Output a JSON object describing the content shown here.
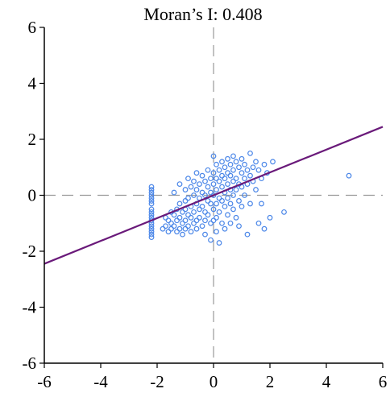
{
  "chart_data": {
    "type": "scatter",
    "title": "Moran’s I: 0.408",
    "xlabel": "",
    "ylabel": "",
    "xlim": [
      -6,
      6
    ],
    "ylim": [
      -6,
      6
    ],
    "xticks": [
      "-6",
      "-4",
      "-2",
      "0",
      "2",
      "4",
      "6"
    ],
    "yticks": [
      "6",
      "4",
      "2",
      "0",
      "-2",
      "-4",
      "-6"
    ],
    "grid": false,
    "reference_lines": {
      "x": 0,
      "y": 0,
      "style": "dashed"
    },
    "colors": {
      "points": "#4a86e8",
      "fit_line": "#6a1a7a",
      "reference": "#9a9a9a",
      "axes": "#000000"
    },
    "fit_line": {
      "slope": 0.408,
      "intercept": 0
    },
    "series": [
      {
        "points": [
          [
            -2.2,
            0.3
          ],
          [
            -2.2,
            0.2
          ],
          [
            -2.2,
            0.1
          ],
          [
            -2.2,
            0.0
          ],
          [
            -2.2,
            -0.1
          ],
          [
            -2.2,
            -0.3
          ],
          [
            -2.2,
            -0.5
          ],
          [
            -2.2,
            -0.6
          ],
          [
            -2.2,
            -0.7
          ],
          [
            -2.2,
            -0.8
          ],
          [
            -2.2,
            -0.9
          ],
          [
            -2.2,
            -1.0
          ],
          [
            -2.2,
            -1.1
          ],
          [
            -2.2,
            -1.2
          ],
          [
            -2.2,
            -1.3
          ],
          [
            -2.2,
            -1.5
          ],
          [
            -2.2,
            -0.2
          ],
          [
            -2.2,
            -1.4
          ],
          [
            -1.8,
            -1.2
          ],
          [
            -1.7,
            -0.8
          ],
          [
            -1.7,
            -1.1
          ],
          [
            -1.6,
            -0.9
          ],
          [
            -1.6,
            -1.3
          ],
          [
            -1.5,
            -0.6
          ],
          [
            -1.5,
            -1.0
          ],
          [
            -1.5,
            -1.2
          ],
          [
            -1.4,
            0.1
          ],
          [
            -1.4,
            -0.7
          ],
          [
            -1.4,
            -1.1
          ],
          [
            -1.3,
            -0.5
          ],
          [
            -1.3,
            -1.3
          ],
          [
            -1.3,
            -0.9
          ],
          [
            -1.2,
            -0.3
          ],
          [
            -1.2,
            -0.8
          ],
          [
            -1.2,
            -1.2
          ],
          [
            -1.2,
            0.4
          ],
          [
            -1.1,
            -0.6
          ],
          [
            -1.1,
            -1.0
          ],
          [
            -1.1,
            -1.4
          ],
          [
            -1.0,
            0.2
          ],
          [
            -1.0,
            -0.2
          ],
          [
            -1.0,
            -0.5
          ],
          [
            -1.0,
            -0.9
          ],
          [
            -1.0,
            -1.2
          ],
          [
            -0.9,
            0.6
          ],
          [
            -0.9,
            -0.1
          ],
          [
            -0.9,
            -0.7
          ],
          [
            -0.9,
            -1.1
          ],
          [
            -0.8,
            0.3
          ],
          [
            -0.8,
            -0.4
          ],
          [
            -0.8,
            -0.8
          ],
          [
            -0.8,
            -1.3
          ],
          [
            -0.7,
            0.0
          ],
          [
            -0.7,
            0.5
          ],
          [
            -0.7,
            -0.6
          ],
          [
            -0.7,
            -1.0
          ],
          [
            -0.6,
            0.8
          ],
          [
            -0.6,
            0.2
          ],
          [
            -0.6,
            -0.3
          ],
          [
            -0.6,
            -0.9
          ],
          [
            -0.6,
            -1.2
          ],
          [
            -0.5,
            0.4
          ],
          [
            -0.5,
            -0.1
          ],
          [
            -0.5,
            -0.5
          ],
          [
            -0.5,
            -0.8
          ],
          [
            -0.4,
            0.7
          ],
          [
            -0.4,
            0.1
          ],
          [
            -0.4,
            -0.4
          ],
          [
            -0.4,
            -1.1
          ],
          [
            -0.3,
            0.5
          ],
          [
            -0.3,
            0.0
          ],
          [
            -0.3,
            -0.6
          ],
          [
            -0.3,
            -0.9
          ],
          [
            -0.3,
            -1.4
          ],
          [
            -0.2,
            0.9
          ],
          [
            -0.2,
            0.3
          ],
          [
            -0.2,
            -0.2
          ],
          [
            -0.2,
            -0.7
          ],
          [
            -0.1,
            0.6
          ],
          [
            -0.1,
            0.1
          ],
          [
            -0.1,
            -0.3
          ],
          [
            -0.1,
            -1.0
          ],
          [
            -0.1,
            -1.6
          ],
          [
            0.0,
            0.8
          ],
          [
            0.0,
            0.4
          ],
          [
            0.0,
            0.0
          ],
          [
            0.0,
            -0.5
          ],
          [
            0.0,
            -0.9
          ],
          [
            0.0,
            1.4
          ],
          [
            0.1,
            1.1
          ],
          [
            0.1,
            0.6
          ],
          [
            0.1,
            0.2
          ],
          [
            0.1,
            -0.3
          ],
          [
            0.1,
            -0.8
          ],
          [
            0.1,
            -1.3
          ],
          [
            0.2,
            0.9
          ],
          [
            0.2,
            0.5
          ],
          [
            0.2,
            -0.1
          ],
          [
            0.2,
            -0.6
          ],
          [
            0.2,
            -1.7
          ],
          [
            0.3,
            1.2
          ],
          [
            0.3,
            0.7
          ],
          [
            0.3,
            0.3
          ],
          [
            0.3,
            -0.2
          ],
          [
            0.3,
            -1.0
          ],
          [
            0.4,
            1.0
          ],
          [
            0.4,
            0.6
          ],
          [
            0.4,
            0.1
          ],
          [
            0.4,
            -0.4
          ],
          [
            0.4,
            -1.2
          ],
          [
            0.5,
            1.3
          ],
          [
            0.5,
            0.8
          ],
          [
            0.5,
            0.4
          ],
          [
            0.5,
            -0.1
          ],
          [
            0.5,
            -0.7
          ],
          [
            0.6,
            1.1
          ],
          [
            0.6,
            0.7
          ],
          [
            0.6,
            0.2
          ],
          [
            0.6,
            -0.3
          ],
          [
            0.6,
            -1.0
          ],
          [
            0.7,
            1.4
          ],
          [
            0.7,
            0.9
          ],
          [
            0.7,
            0.5
          ],
          [
            0.7,
            0.0
          ],
          [
            0.7,
            -0.5
          ],
          [
            0.8,
            1.2
          ],
          [
            0.8,
            0.6
          ],
          [
            0.8,
            0.2
          ],
          [
            0.8,
            -0.8
          ],
          [
            0.9,
            1.0
          ],
          [
            0.9,
            0.4
          ],
          [
            0.9,
            -0.2
          ],
          [
            0.9,
            -1.1
          ],
          [
            1.0,
            1.3
          ],
          [
            1.0,
            0.8
          ],
          [
            1.0,
            0.3
          ],
          [
            1.0,
            -0.4
          ],
          [
            1.1,
            1.1
          ],
          [
            1.1,
            0.6
          ],
          [
            1.1,
            0.0
          ],
          [
            1.2,
            0.9
          ],
          [
            1.2,
            0.4
          ],
          [
            1.2,
            -1.4
          ],
          [
            1.3,
            1.5
          ],
          [
            1.3,
            0.7
          ],
          [
            1.3,
            -0.3
          ],
          [
            1.4,
            1.0
          ],
          [
            1.4,
            0.5
          ],
          [
            1.5,
            1.2
          ],
          [
            1.5,
            0.2
          ],
          [
            1.6,
            0.9
          ],
          [
            1.6,
            -1.0
          ],
          [
            1.7,
            0.6
          ],
          [
            1.7,
            -0.3
          ],
          [
            1.8,
            1.1
          ],
          [
            1.8,
            -1.2
          ],
          [
            1.9,
            0.8
          ],
          [
            2.0,
            -0.8
          ],
          [
            2.1,
            1.2
          ],
          [
            2.5,
            -0.6
          ],
          [
            4.8,
            0.7
          ]
        ]
      }
    ]
  }
}
